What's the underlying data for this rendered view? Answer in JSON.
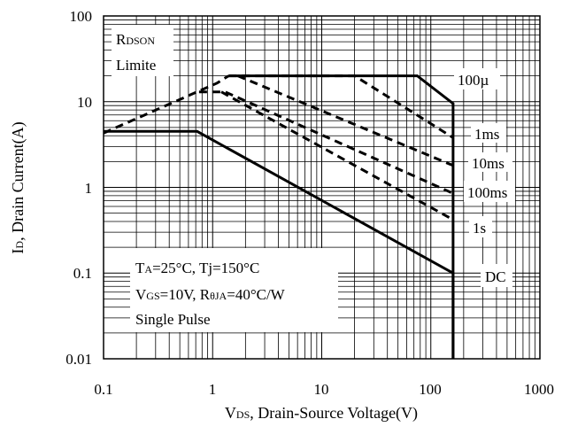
{
  "chart_data": {
    "type": "line",
    "x_scale": "log",
    "y_scale": "log",
    "xlim": [
      0.1,
      1000
    ],
    "ylim": [
      0.01,
      100
    ],
    "x_ticks": [
      "0.1",
      "1",
      "10",
      "100",
      "1000"
    ],
    "y_ticks": [
      "0.01",
      "0.1",
      "1",
      "10",
      "100"
    ],
    "xlabel": {
      "main": "V",
      "sub": "DS",
      "rest": ", Drain-Source Voltage(V)"
    },
    "ylabel": {
      "main": "I",
      "sub": "D",
      "rest": ", Drain Current(A)"
    },
    "grid": true,
    "rdson_label": [
      "R",
      "DSON",
      "Limite"
    ],
    "conditions": {
      "line1": {
        "a": "T",
        "a_sub": "A",
        "b": "=25°C, Tj=150°C"
      },
      "line2": {
        "a": "V",
        "a_sub": "GS",
        "b": "=10V, R",
        "c": "θJA",
        "d": "=40°C/W"
      },
      "line3": "Single Pulse"
    },
    "series": [
      {
        "name": "100µ",
        "style": "solid",
        "points": [
          [
            1.4,
            20
          ],
          [
            75,
            20
          ],
          [
            160,
            9.5
          ],
          [
            160,
            0.01
          ]
        ]
      },
      {
        "name": "1ms",
        "style": "dashed",
        "points": [
          [
            1.4,
            20
          ],
          [
            20,
            20
          ],
          [
            160,
            3.8
          ]
        ]
      },
      {
        "name": "10ms",
        "style": "dashed",
        "points": [
          [
            1.7,
            20
          ],
          [
            160,
            1.8
          ]
        ]
      },
      {
        "name": "100ms",
        "style": "dashed",
        "points": [
          [
            0.75,
            13
          ],
          [
            1.3,
            13
          ],
          [
            160,
            0.85
          ]
        ]
      },
      {
        "name": "1s",
        "style": "dashed",
        "points": [
          [
            1.2,
            13
          ],
          [
            160,
            0.42
          ]
        ]
      },
      {
        "name": "DC",
        "style": "solid",
        "points": [
          [
            0.1,
            4.5
          ],
          [
            0.72,
            4.5
          ],
          [
            160,
            0.1
          ],
          [
            160,
            0.01
          ]
        ]
      },
      {
        "name": "R_DSON Limite",
        "style": "dashed",
        "points": [
          [
            0.1,
            4.3
          ],
          [
            1.1,
            16.5
          ],
          [
            1.4,
            20
          ]
        ]
      }
    ],
    "series_labels": [
      "100µ",
      "1ms",
      "10ms",
      "100ms",
      "1s",
      "DC"
    ]
  }
}
